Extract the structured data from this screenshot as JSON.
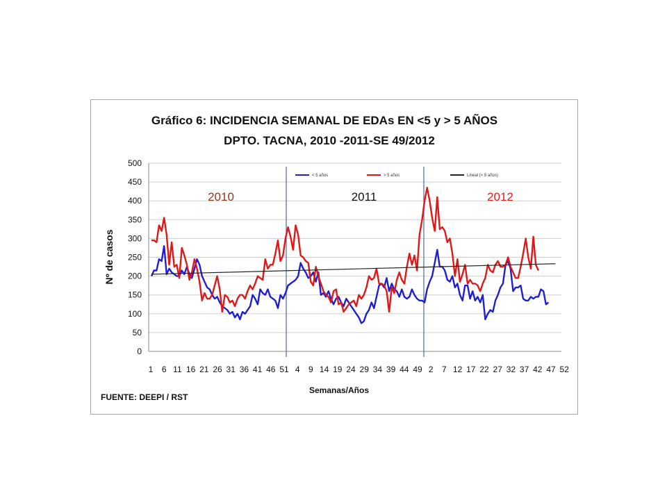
{
  "chart_data": {
    "type": "line",
    "title_line1": "Gráfico 6:  INCIDENCIA SEMANAL DE EDAs EN <5 y > 5 AÑOS",
    "title_line2": "DPTO. TACNA, 2010 -2011-SE 49/2012",
    "xlabel": "Semanas/Años",
    "ylabel": "Nº de casos",
    "source": "FUENTE: DEEPI  / RST",
    "ylim": [
      0,
      500
    ],
    "yticks": [
      0,
      50,
      100,
      150,
      200,
      250,
      300,
      350,
      400,
      450,
      500
    ],
    "xtick_labels": [
      "1",
      "6",
      "11",
      "16",
      "21",
      "26",
      "31",
      "36",
      "41",
      "46",
      "51",
      "4",
      "9",
      "14",
      "19",
      "24",
      "29",
      "34",
      "39",
      "44",
      "49",
      "2",
      "7",
      "12",
      "17",
      "22",
      "27",
      "32",
      "37",
      "42",
      "47",
      "52"
    ],
    "year_labels": [
      {
        "text": "2010",
        "color": "#8b3a1a"
      },
      {
        "text": "2011",
        "color": "#111111"
      },
      {
        "text": "2012",
        "color": "#e02020"
      }
    ],
    "legend": [
      {
        "name": "< 5 años",
        "color": "#1f1fd0"
      },
      {
        "name": "> 5 años",
        "color": "#e01818"
      },
      {
        "name": "Lineal (> 5 años)",
        "color": "#222222"
      }
    ],
    "grid": true,
    "series": [
      {
        "name": "< 5 años",
        "color": "#1f1fd0",
        "values": [
          200,
          215,
          215,
          245,
          240,
          280,
          205,
          220,
          210,
          205,
          200,
          200,
          215,
          205,
          225,
          205,
          195,
          220,
          245,
          230,
          200,
          185,
          170,
          165,
          150,
          140,
          145,
          130,
          120,
          115,
          110,
          100,
          105,
          90,
          100,
          85,
          105,
          100,
          110,
          120,
          150,
          140,
          125,
          165,
          155,
          150,
          165,
          145,
          140,
          135,
          115,
          150,
          140,
          155,
          175,
          180,
          185,
          190,
          200,
          235,
          220,
          210,
          195,
          200,
          210,
          185,
          210,
          150,
          155,
          145,
          160,
          140,
          125,
          140,
          145,
          130,
          120,
          140,
          130,
          120,
          110,
          100,
          90,
          75,
          80,
          100,
          110,
          130,
          115,
          145,
          175,
          180,
          170,
          195,
          160,
          180,
          165,
          160,
          145,
          165,
          145,
          140,
          145,
          165,
          150,
          140,
          135,
          135,
          130,
          165,
          185,
          200,
          235,
          270,
          225,
          225,
          215,
          190,
          185,
          200,
          170,
          180,
          150,
          135,
          175,
          175,
          140,
          160,
          135,
          145,
          130,
          150,
          85,
          100,
          110,
          105,
          135,
          150,
          170,
          180,
          230,
          240,
          220,
          160,
          170,
          170,
          175,
          140,
          135,
          135,
          145,
          140,
          145,
          145,
          165,
          160,
          125,
          130
        ]
      },
      {
        "name": "> 5 años",
        "color": "#e01818",
        "values": [
          295,
          295,
          290,
          335,
          320,
          355,
          310,
          230,
          290,
          225,
          230,
          195,
          275,
          255,
          230,
          190,
          210,
          245,
          220,
          185,
          135,
          155,
          140,
          140,
          150,
          175,
          200,
          165,
          105,
          150,
          145,
          130,
          135,
          120,
          140,
          150,
          150,
          140,
          160,
          175,
          165,
          180,
          200,
          195,
          190,
          245,
          220,
          230,
          230,
          260,
          295,
          240,
          255,
          300,
          330,
          305,
          270,
          335,
          310,
          255,
          250,
          240,
          235,
          185,
          175,
          225,
          200,
          180,
          160,
          150,
          145,
          130,
          160,
          165,
          125,
          130,
          105,
          115,
          125,
          130,
          135,
          120,
          150,
          140,
          150,
          170,
          200,
          190,
          195,
          220,
          180,
          180,
          175,
          160,
          105,
          170,
          155,
          190,
          210,
          190,
          180,
          225,
          260,
          230,
          255,
          215,
          310,
          350,
          400,
          435,
          400,
          355,
          320,
          410,
          325,
          330,
          320,
          290,
          300,
          260,
          200,
          245,
          185,
          205,
          230,
          180,
          190,
          180,
          180,
          175,
          160,
          180,
          195,
          230,
          215,
          210,
          230,
          240,
          225,
          225,
          230,
          250,
          225,
          210,
          195,
          195,
          225,
          260,
          300,
          250,
          220,
          305,
          230,
          215
        ]
      }
    ],
    "trend": {
      "name": "Lineal (> 5 años)",
      "start": 205,
      "end": 233
    }
  }
}
